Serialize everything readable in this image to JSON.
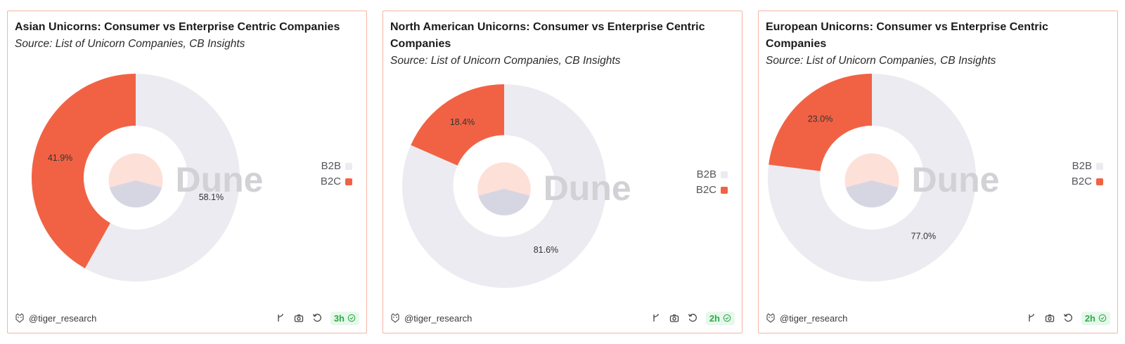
{
  "colors": {
    "b2b": "#ebebf1",
    "b2c": "#f16244",
    "panel_border": "#f6b4a3",
    "badge_green": "#2fa94b",
    "watermark": "#d2d2d6"
  },
  "watermark": "Dune",
  "icons": [
    "tiger-logo-icon",
    "fork-icon",
    "camera-icon",
    "refresh-icon",
    "check-circle-icon"
  ],
  "panels": [
    {
      "title": "Asian Unicorns: Consumer vs Enterprise Centric Companies",
      "source": "Source: List of Unicorn Companies, CB Insights",
      "author": "@tiger_research",
      "age": "3h",
      "legend": [
        {
          "label": "B2B"
        },
        {
          "label": "B2C"
        }
      ]
    },
    {
      "title": "North American Unicorns: Consumer vs Enterprise Centric Companies",
      "source": "Source: List of Unicorn Companies, CB Insights",
      "author": "@tiger_research",
      "age": "2h",
      "legend": [
        {
          "label": "B2B"
        },
        {
          "label": "B2C"
        }
      ]
    },
    {
      "title": "European Unicorns: Consumer vs Enterprise Centric Companies",
      "source": "Source: List of Unicorn Companies, CB Insights",
      "author": "@tiger_research",
      "age": "2h",
      "legend": [
        {
          "label": "B2B"
        },
        {
          "label": "B2C"
        }
      ]
    }
  ],
  "chart_data": [
    {
      "type": "pie",
      "title": "Asian Unicorns: Consumer vs Enterprise Centric Companies",
      "subtitle": "Source: List of Unicorn Companies, CB Insights",
      "categories": [
        "B2B",
        "B2C"
      ],
      "values": [
        58.1,
        41.9
      ],
      "labels": [
        "58.1%",
        "41.9%"
      ],
      "legend_position": "right"
    },
    {
      "type": "pie",
      "title": "North American Unicorns: Consumer vs Enterprise Centric Companies",
      "subtitle": "Source: List of Unicorn Companies, CB Insights",
      "categories": [
        "B2B",
        "B2C"
      ],
      "values": [
        81.6,
        18.4
      ],
      "labels": [
        "81.6%",
        "18.4%"
      ],
      "legend_position": "right"
    },
    {
      "type": "pie",
      "title": "European Unicorns: Consumer vs Enterprise Centric Companies",
      "subtitle": "Source: List of Unicorn Companies, CB Insights",
      "categories": [
        "B2B",
        "B2C"
      ],
      "values": [
        77.0,
        23.0
      ],
      "labels": [
        "77.0%",
        "23.0%"
      ],
      "legend_position": "right"
    }
  ]
}
